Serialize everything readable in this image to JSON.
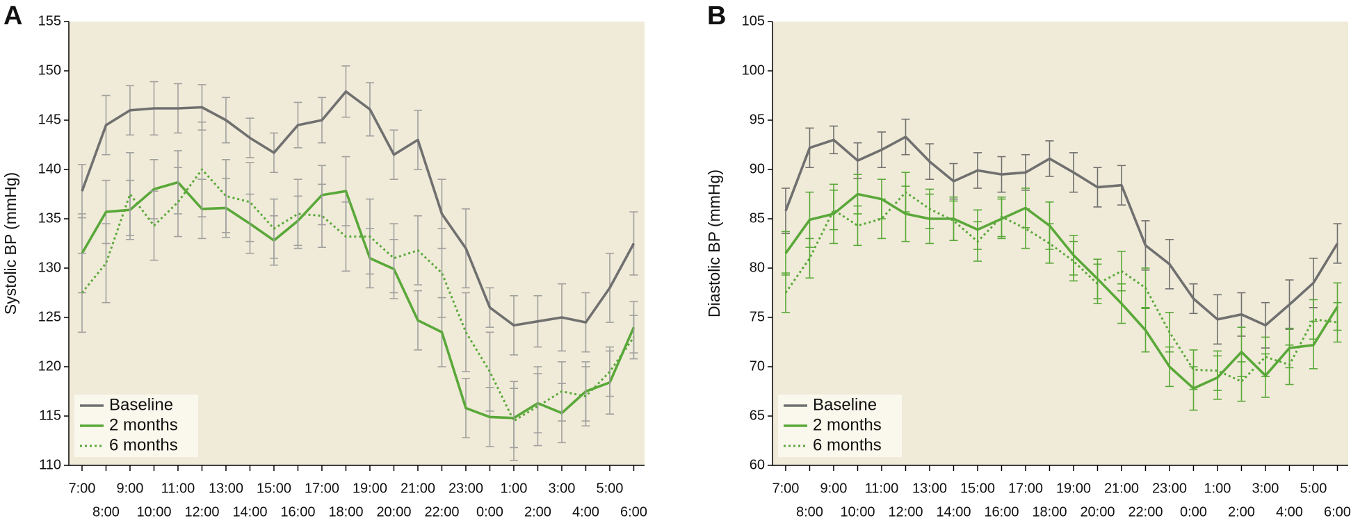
{
  "chart_data": [
    {
      "type": "line",
      "panel_label": "A",
      "y_label": "Systolic BP (mmHg)",
      "categories": [
        "7:00",
        "8:00",
        "9:00",
        "10:00",
        "11:00",
        "12:00",
        "13:00",
        "14:00",
        "15:00",
        "16:00",
        "17:00",
        "18:00",
        "19:00",
        "20:00",
        "21:00",
        "22:00",
        "23:00",
        "0:00",
        "1:00",
        "2:00",
        "3:00",
        "4:00",
        "5:00",
        "6:00"
      ],
      "ylim": [
        110,
        155
      ],
      "yticks": [
        110,
        115,
        120,
        125,
        130,
        135,
        140,
        145,
        150,
        155
      ],
      "background": "#f0ebd8",
      "legend": "bottom-left",
      "error_bar_color": "#a0a0a0",
      "series": [
        {
          "name": "Baseline",
          "color": "#707070",
          "dash": "solid",
          "values": [
            137.8,
            144.5,
            146,
            146.2,
            146.2,
            146.3,
            145,
            143.2,
            141.7,
            144.5,
            145,
            147.9,
            146.1,
            141.5,
            143,
            135.5,
            132,
            126,
            124.2,
            124.6,
            125,
            124.5,
            128,
            132.5
          ],
          "errors": [
            2.7,
            3,
            2.5,
            2.7,
            2.5,
            2.3,
            2.3,
            2,
            2,
            2.3,
            2.3,
            2.6,
            2.7,
            2.5,
            3,
            3.5,
            4,
            2,
            3,
            2.6,
            3.4,
            3,
            3.5,
            3.2
          ]
        },
        {
          "name": "2 months",
          "color": "#5aa83a",
          "dash": "solid",
          "values": [
            131.5,
            135.7,
            135.9,
            138,
            138.7,
            136,
            136.1,
            134.5,
            132.8,
            134.8,
            137.4,
            137.8,
            131,
            129.9,
            124.7,
            123.5,
            115.8,
            114.9,
            114.8,
            116.3,
            115.3,
            117.5,
            118.4,
            124
          ],
          "errors": [
            4,
            3.2,
            3,
            3,
            3.2,
            3,
            3,
            3,
            2.5,
            2.5,
            3,
            3.5,
            3,
            3,
            3,
            3.5,
            3,
            3,
            3,
            3,
            3,
            3,
            3.2,
            2.6
          ]
        },
        {
          "name": "6 months",
          "color": "#5aa83a",
          "dash": "dotted",
          "values": [
            127.5,
            130.5,
            137.5,
            134.3,
            136.7,
            140,
            137.3,
            136.7,
            134,
            135.5,
            135.3,
            133.2,
            133.2,
            131,
            131.8,
            129.5,
            123.5,
            119.5,
            114.5,
            116,
            117.5,
            117,
            119.5,
            123
          ],
          "errors": [
            4,
            4,
            4.2,
            3.5,
            3.5,
            4.8,
            3.7,
            4,
            3,
            3.5,
            3.2,
            3.5,
            3.8,
            3.5,
            3.5,
            4.5,
            4,
            4,
            4,
            4,
            3,
            3,
            2.5,
            2.2
          ]
        }
      ]
    },
    {
      "type": "line",
      "panel_label": "B",
      "y_label": "Diastolic BP (mmHg)",
      "categories": [
        "7:00",
        "8:00",
        "9:00",
        "10:00",
        "11:00",
        "12:00",
        "13:00",
        "14:00",
        "15:00",
        "16:00",
        "17:00",
        "18:00",
        "19:00",
        "20:00",
        "21:00",
        "22:00",
        "23:00",
        "0:00",
        "1:00",
        "2:00",
        "3:00",
        "4:00",
        "5:00",
        "6:00"
      ],
      "ylim": [
        60,
        105
      ],
      "yticks": [
        60,
        65,
        70,
        75,
        80,
        85,
        90,
        95,
        100,
        105
      ],
      "background": "#f0ebd8",
      "legend": "bottom-left",
      "series": [
        {
          "name": "Baseline",
          "color": "#707070",
          "dash": "solid",
          "values": [
            85.8,
            92.2,
            93,
            90.9,
            92,
            93.3,
            90.8,
            88.8,
            89.9,
            89.5,
            89.7,
            91.1,
            89.7,
            88.2,
            88.4,
            82.3,
            80.4,
            76.9,
            74.8,
            75.3,
            74.2,
            76.3,
            78.5,
            82.5
          ],
          "errors": [
            2.3,
            2,
            1.4,
            1.8,
            1.8,
            1.8,
            1.8,
            1.8,
            1.8,
            1.8,
            1.8,
            1.8,
            2,
            2,
            2,
            2.5,
            2.5,
            1.5,
            2.5,
            2.2,
            2.3,
            2.5,
            2.5,
            2
          ]
        },
        {
          "name": "2 months",
          "color": "#5aa83a",
          "dash": "solid",
          "values": [
            81.5,
            84.9,
            85.5,
            87.5,
            87,
            85.5,
            85,
            85,
            83.9,
            85,
            86.1,
            84.3,
            81.3,
            78.9,
            76.4,
            73.7,
            70,
            67.8,
            68.9,
            71.5,
            69.1,
            71.9,
            72.2,
            76.1
          ],
          "errors": [
            2.2,
            2.8,
            3,
            2,
            2,
            2.8,
            2.5,
            2.2,
            2,
            2,
            2,
            2.4,
            2,
            2,
            2,
            2.2,
            2,
            2.2,
            2.2,
            2.5,
            2.2,
            2,
            2.4,
            2.4
          ]
        },
        {
          "name": "6 months",
          "color": "#5aa83a",
          "dash": "dotted",
          "values": [
            77.5,
            81,
            85.9,
            84.3,
            85,
            87.7,
            86,
            84.8,
            82.7,
            85.2,
            84,
            82.5,
            80.7,
            78.4,
            79.7,
            78,
            73.5,
            69.7,
            69.6,
            68.5,
            71,
            70.2,
            74.8,
            74.5
          ],
          "errors": [
            2,
            2,
            2,
            2,
            2,
            2,
            2,
            2,
            2,
            2,
            2,
            2,
            2,
            2,
            2,
            2,
            2,
            2,
            2,
            2,
            2,
            2,
            2,
            2
          ]
        }
      ]
    }
  ]
}
